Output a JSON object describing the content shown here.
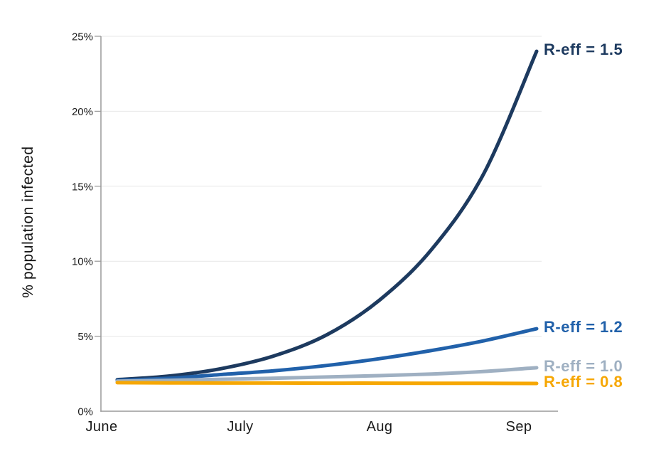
{
  "page": {
    "background_color": "#ffffff"
  },
  "chart_data": {
    "type": "line",
    "title": "",
    "xlabel": "",
    "ylabel": "% population infected",
    "x_tick_labels": [
      "June",
      "July",
      "Aug",
      "Sep"
    ],
    "y_tick_labels": [
      "0%",
      "5%",
      "10%",
      "15%",
      "20%",
      "25%"
    ],
    "y_tick_values": [
      0,
      5,
      10,
      15,
      20,
      25
    ],
    "ylim": [
      0,
      25
    ],
    "grid": "horizontal gridlines at each 5%, no vertical gridlines",
    "legend_position": "direct labels at right end of each line",
    "axis_color": "#9a9a9a",
    "gridline_color": "#e7e7e7",
    "tick_label_color": "#1a1a1a",
    "series": [
      {
        "name": "R-eff = 1.5",
        "color": "#1d3a5f",
        "values_pct": [
          2.1,
          2.35,
          2.85,
          3.7,
          5.1,
          7.4,
          10.8,
          15.9,
          24.0
        ]
      },
      {
        "name": "R-eff = 1.2",
        "color": "#2161aa",
        "values_pct": [
          2.05,
          2.2,
          2.45,
          2.7,
          3.05,
          3.5,
          4.05,
          4.7,
          5.5
        ]
      },
      {
        "name": "R-eff = 1.0",
        "color": "#9fb0c2",
        "values_pct": [
          2.0,
          2.06,
          2.13,
          2.2,
          2.28,
          2.37,
          2.48,
          2.65,
          2.9
        ]
      },
      {
        "name": "R-eff = 0.8",
        "color": "#f6a704",
        "values_pct": [
          1.9,
          1.89,
          1.88,
          1.88,
          1.87,
          1.87,
          1.86,
          1.86,
          1.85
        ]
      }
    ]
  }
}
